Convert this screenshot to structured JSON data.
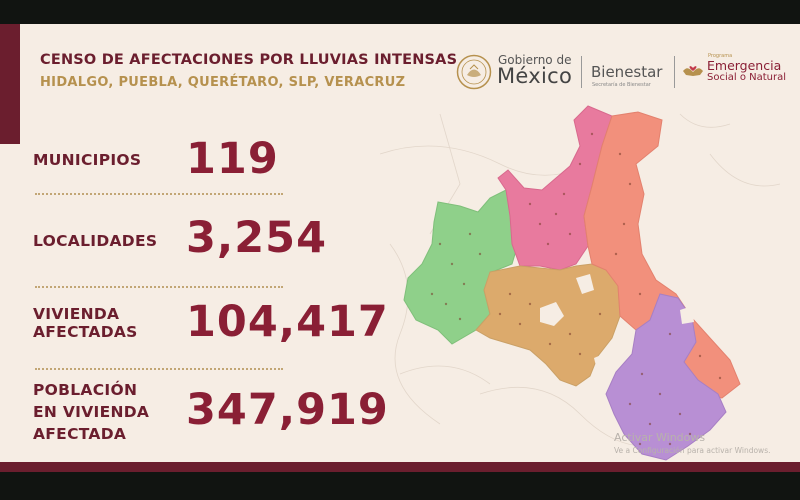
{
  "header": {
    "title": "CENSO DE AFECTACIONES POR LLUVIAS INTENSAS",
    "subtitle": "HIDALGO, PUEBLA, QUERÉTARO, SLP, VERACRUZ"
  },
  "logos": {
    "gobierno_de": "Gobierno de",
    "mexico": "México",
    "bienestar": "Bienestar",
    "bienestar_sub": "Secretaría de Bienestar",
    "programa": "Programa",
    "emergencia": "Emergencia",
    "social": "Social o Natural"
  },
  "stats": {
    "municipios": {
      "label": "MUNICIPIOS",
      "value": "119"
    },
    "localidades": {
      "label": "LOCALIDADES",
      "value": "3,254"
    },
    "vivienda": {
      "label_l1": "VIVIENDA",
      "label_l2": "AFECTADAS",
      "value": "104,417"
    },
    "poblacion": {
      "label_l1": "POBLACIÓN",
      "label_l2": "EN VIVIENDA",
      "label_l3": "AFECTADA",
      "value": "347,919"
    }
  },
  "watermark": {
    "line1": "Activar Windows",
    "line2": "Ve a Configuración para activar Windows."
  },
  "colors": {
    "brand": "#6b1e2e",
    "value": "#8a1f35",
    "gold": "#b6914e",
    "background": "#f6ede4",
    "region_queretaro": "#8fd08a",
    "region_slp": "#e87a9e",
    "region_hidalgo": "#dcaa6c",
    "region_veracruz": "#f2907c",
    "region_puebla": "#b88fd4"
  }
}
